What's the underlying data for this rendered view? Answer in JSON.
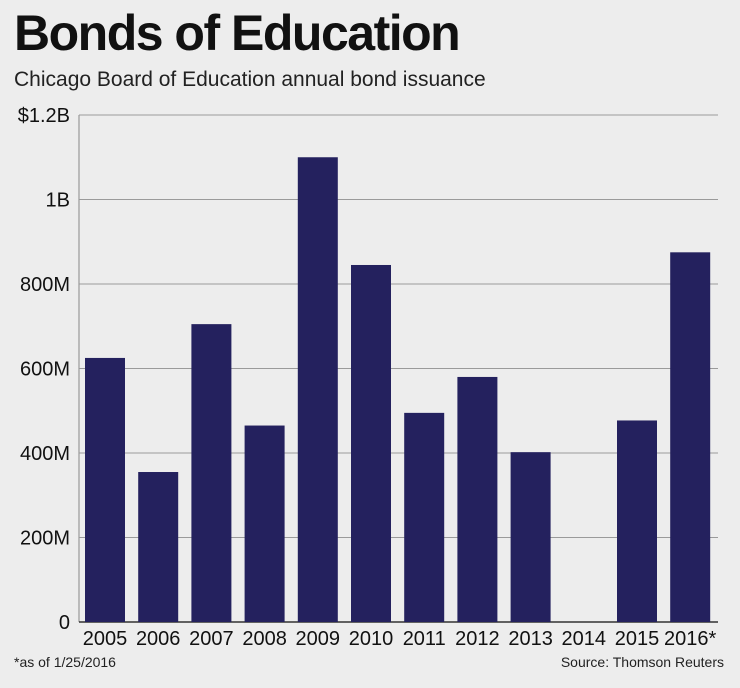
{
  "header": {
    "title": "Bonds of Education",
    "subtitle": "Chicago Board of Education annual bond issuance"
  },
  "footer": {
    "footnote": "*as of 1/25/2016",
    "source": "Source: Thomson Reuters"
  },
  "colors": {
    "bar": "#24215e",
    "grid": "#9a9a9a",
    "background": "#ededed"
  },
  "chart_data": {
    "type": "bar",
    "title": "Bonds of Education",
    "subtitle": "Chicago Board of Education annual bond issuance",
    "xlabel": "",
    "ylabel": "",
    "categories": [
      "2005",
      "2006",
      "2007",
      "2008",
      "2009",
      "2010",
      "2011",
      "2012",
      "2013",
      "2014",
      "2015",
      "2016*"
    ],
    "values": [
      625,
      355,
      705,
      465,
      1100,
      845,
      495,
      580,
      402,
      0,
      477,
      875
    ],
    "value_unit": "millions of dollars",
    "ylim": [
      0,
      1200
    ],
    "yticks": [
      {
        "value": 0,
        "label": "0"
      },
      {
        "value": 200,
        "label": "200M"
      },
      {
        "value": 400,
        "label": "400M"
      },
      {
        "value": 600,
        "label": "600M"
      },
      {
        "value": 800,
        "label": "800M"
      },
      {
        "value": 1000,
        "label": "1B"
      },
      {
        "value": 1200,
        "label": "$1.2B"
      }
    ],
    "grid": true
  }
}
